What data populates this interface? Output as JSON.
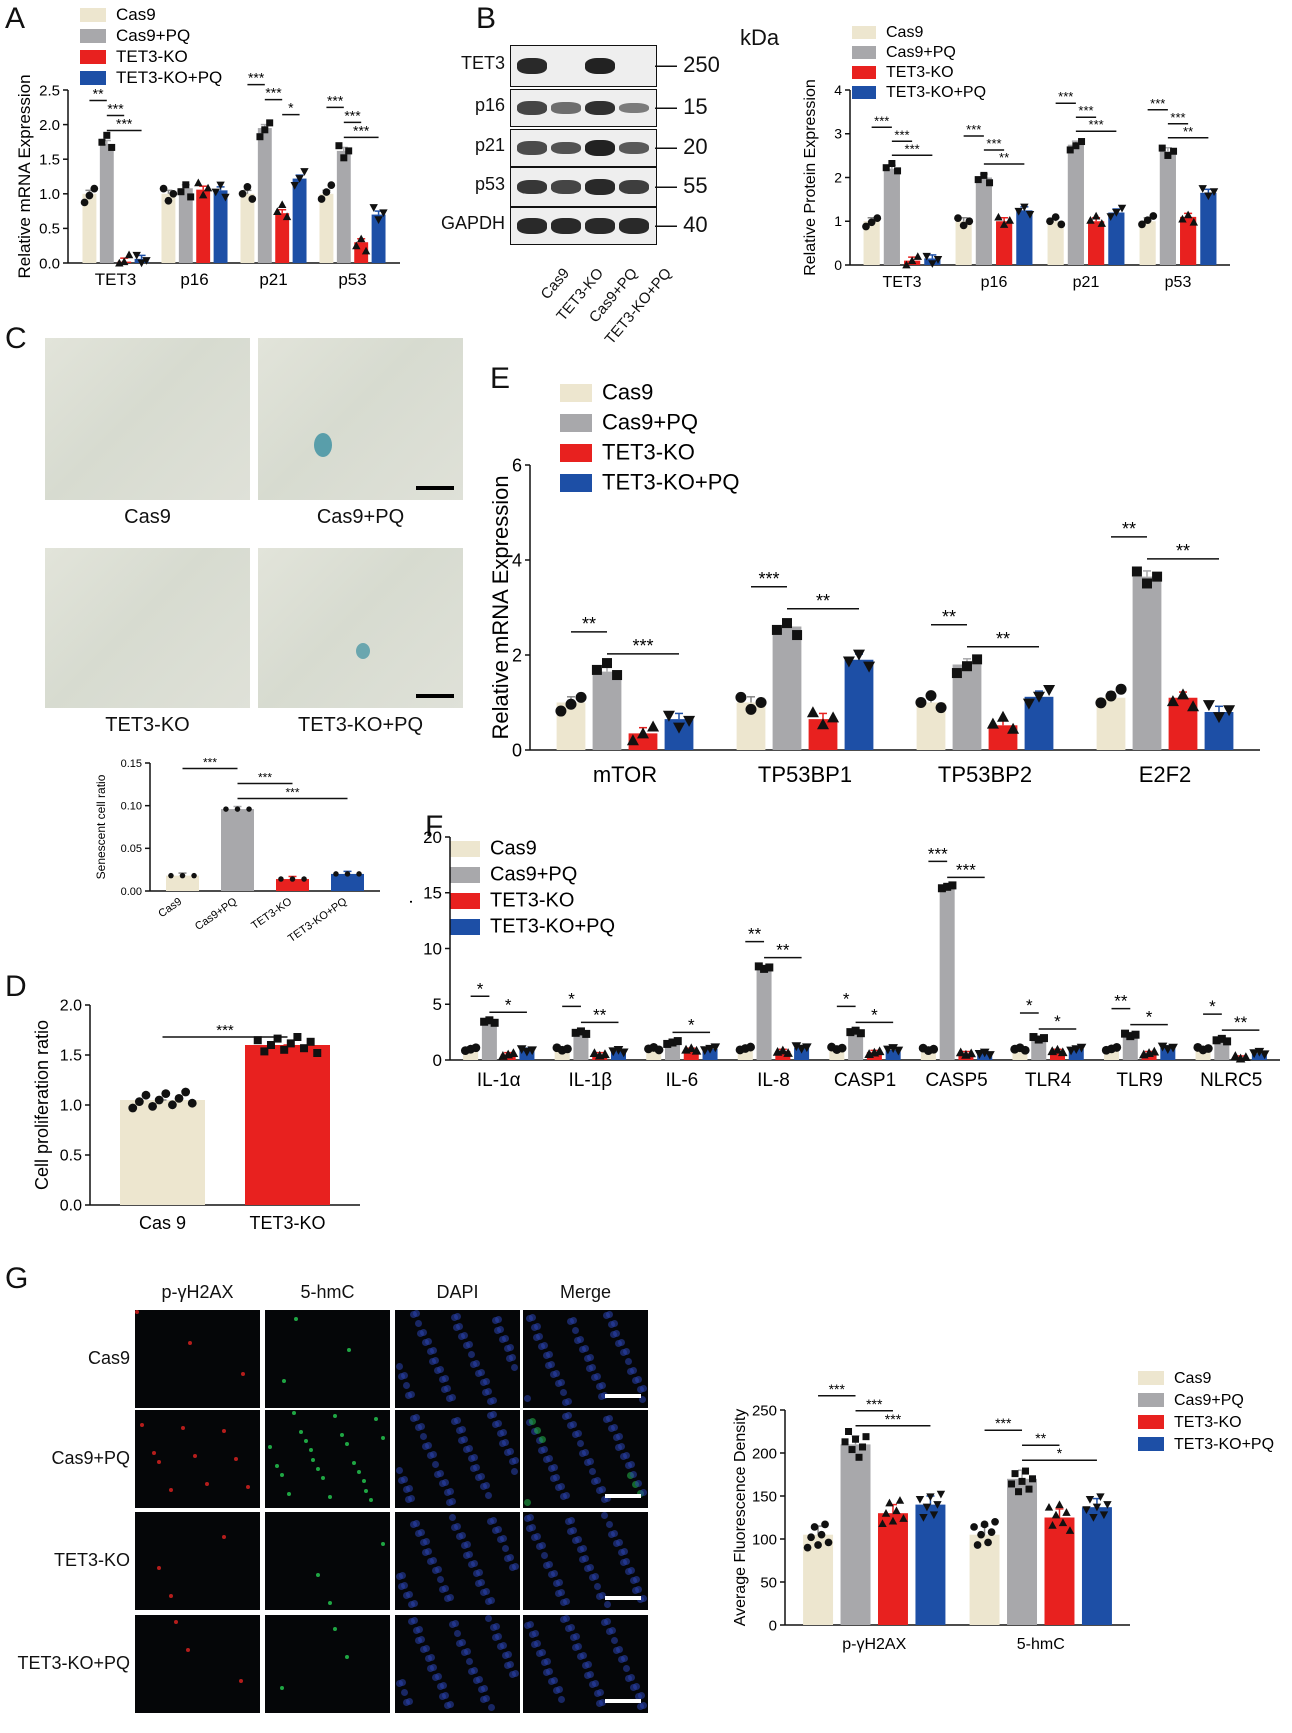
{
  "legend_groups": [
    "Cas9",
    "Cas9+PQ",
    "TET3-KO",
    "TET3-KO+PQ"
  ],
  "colors": {
    "cas9": "#ede6cf",
    "cas9pq": "#a8a8ab",
    "tet3ko": "#e8211f",
    "tet3kopq": "#1d4fa6"
  },
  "panels": {
    "a": "A",
    "b": "B",
    "c": "C",
    "d": "D",
    "e": "E",
    "f": "F",
    "g": "G"
  },
  "panel_b": {
    "kda_label": "kDa",
    "proteins": [
      "TET3",
      "p16",
      "p21",
      "p53",
      "GAPDH"
    ],
    "kda_values": [
      "250",
      "15",
      "20",
      "55",
      "40"
    ],
    "lanes": [
      "Cas9",
      "TET3-KO",
      "Cas9+PQ",
      "TET3-KO+PQ"
    ]
  },
  "panel_c": {
    "images": [
      "Cas9",
      "Cas9+PQ",
      "TET3-KO",
      "TET3-KO+PQ"
    ]
  },
  "panel_g": {
    "columns": [
      "p-γH2AX",
      "5-hmC",
      "DAPI",
      "Merge"
    ],
    "rows": [
      "Cas9",
      "Cas9+PQ",
      "TET3-KO",
      "TET3-KO+PQ"
    ]
  },
  "chart_data": [
    {
      "id": "A",
      "type": "bar",
      "ylabel": "Relative mRNA Expression",
      "categories": [
        "TET3",
        "p16",
        "p21",
        "p53"
      ],
      "ylim": [
        0,
        2.5
      ],
      "yticks": [
        "0.0",
        "0.5",
        "1.0",
        "1.5",
        "2.0",
        "2.5"
      ],
      "series": [
        {
          "name": "Cas9",
          "values": [
            1.0,
            1.0,
            1.0,
            1.0
          ]
        },
        {
          "name": "Cas9+PQ",
          "values": [
            1.72,
            1.08,
            1.95,
            1.62
          ]
        },
        {
          "name": "TET3-KO",
          "values": [
            0.02,
            1.06,
            0.72,
            0.3
          ]
        },
        {
          "name": "TET3-KO+PQ",
          "values": [
            0.06,
            1.05,
            1.22,
            0.7
          ]
        }
      ],
      "significance": [
        {
          "cat": 0,
          "pairs": [
            [
              0,
              1,
              "**"
            ],
            [
              1,
              2,
              "***"
            ],
            [
              1,
              3,
              "***"
            ]
          ]
        },
        {
          "cat": 2,
          "pairs": [
            [
              0,
              1,
              "***"
            ],
            [
              1,
              2,
              "***"
            ],
            [
              2,
              3,
              "*"
            ]
          ]
        },
        {
          "cat": 3,
          "pairs": [
            [
              0,
              1,
              "***"
            ],
            [
              1,
              2,
              "***"
            ],
            [
              1,
              3,
              "***"
            ]
          ]
        }
      ]
    },
    {
      "id": "B",
      "type": "bar",
      "ylabel": "Relative Protein Expression",
      "categories": [
        "TET3",
        "p16",
        "p21",
        "p53"
      ],
      "ylim": [
        0,
        4
      ],
      "yticks": [
        "0",
        "1",
        "2",
        "3",
        "4"
      ],
      "series": [
        {
          "name": "Cas9",
          "values": [
            1.0,
            1.0,
            1.0,
            1.0
          ]
        },
        {
          "name": "Cas9+PQ",
          "values": [
            2.2,
            2.0,
            2.75,
            2.6
          ]
        },
        {
          "name": "TET3-KO",
          "values": [
            0.1,
            1.0,
            1.0,
            1.1
          ]
        },
        {
          "name": "TET3-KO+PQ",
          "values": [
            0.15,
            1.25,
            1.2,
            1.65
          ]
        }
      ],
      "significance": [
        {
          "cat": 0,
          "pairs": [
            [
              0,
              1,
              "***"
            ],
            [
              1,
              2,
              "***"
            ],
            [
              1,
              3,
              "***"
            ]
          ]
        },
        {
          "cat": 1,
          "pairs": [
            [
              0,
              1,
              "***"
            ],
            [
              1,
              2,
              "***"
            ],
            [
              1,
              3,
              "**"
            ]
          ]
        },
        {
          "cat": 2,
          "pairs": [
            [
              0,
              1,
              "***"
            ],
            [
              1,
              2,
              "***"
            ],
            [
              1,
              3,
              "***"
            ]
          ]
        },
        {
          "cat": 3,
          "pairs": [
            [
              0,
              1,
              "***"
            ],
            [
              1,
              2,
              "***"
            ],
            [
              1,
              3,
              "**"
            ]
          ]
        }
      ]
    },
    {
      "id": "C",
      "type": "bar",
      "ylabel": "Senescent cell ratio",
      "categories": [
        "Cas9",
        "Cas9+PQ",
        "TET3-KO",
        "TET3-KO+PQ"
      ],
      "ylim": [
        0,
        0.15
      ],
      "yticks": [
        "0.00",
        "0.05",
        "0.10",
        "0.15"
      ],
      "values": [
        0.018,
        0.096,
        0.014,
        0.02
      ],
      "significance": [
        [
          0,
          1,
          "***"
        ],
        [
          1,
          2,
          "***"
        ],
        [
          1,
          3,
          "***"
        ]
      ]
    },
    {
      "id": "D",
      "type": "bar",
      "ylabel": "Cell proliferation ratio",
      "categories": [
        "Cas 9",
        "TET3-KO"
      ],
      "ylim": [
        0,
        2.0
      ],
      "yticks": [
        "0.0",
        "0.5",
        "1.0",
        "1.5",
        "2.0"
      ],
      "values": [
        1.05,
        1.6
      ],
      "significance": [
        [
          0,
          1,
          "***"
        ]
      ]
    },
    {
      "id": "E",
      "type": "bar",
      "ylabel": "Relative mRNA Expression",
      "categories": [
        "mTOR",
        "TP53BP1",
        "TP53BP2",
        "E2F2"
      ],
      "ylim": [
        0,
        6
      ],
      "yticks": [
        "0",
        "2",
        "4",
        "6"
      ],
      "series": [
        {
          "name": "Cas9",
          "values": [
            1.0,
            1.0,
            1.0,
            1.1
          ]
        },
        {
          "name": "Cas9+PQ",
          "values": [
            1.65,
            2.6,
            1.8,
            3.65
          ]
        },
        {
          "name": "TET3-KO",
          "values": [
            0.35,
            0.65,
            0.52,
            1.1
          ]
        },
        {
          "name": "TET3-KO+PQ",
          "values": [
            0.65,
            1.9,
            1.12,
            0.8
          ]
        }
      ],
      "significance": [
        {
          "cat": 0,
          "pairs": [
            [
              0,
              1,
              "**"
            ],
            [
              1,
              3,
              "***"
            ]
          ]
        },
        {
          "cat": 1,
          "pairs": [
            [
              0,
              1,
              "***"
            ],
            [
              1,
              3,
              "**"
            ]
          ]
        },
        {
          "cat": 2,
          "pairs": [
            [
              0,
              1,
              "**"
            ],
            [
              1,
              3,
              "**"
            ]
          ]
        },
        {
          "cat": 3,
          "pairs": [
            [
              0,
              1,
              "**"
            ],
            [
              1,
              3,
              "**"
            ]
          ]
        }
      ]
    },
    {
      "id": "F",
      "type": "bar",
      "ylabel": "Relative mRNA Expression",
      "categories": [
        "IL-1α",
        "IL-1β",
        "IL-6",
        "IL-8",
        "CASP1",
        "CASP5",
        "TLR4",
        "TLR9",
        "NLRC5"
      ],
      "ylim": [
        0,
        20
      ],
      "yticks": [
        "0",
        "5",
        "10",
        "15",
        "20"
      ],
      "series": [
        {
          "name": "Cas9",
          "values": [
            1.0,
            1.0,
            1.0,
            1.0,
            1.0,
            1.0,
            1.0,
            1.0,
            1.0
          ]
        },
        {
          "name": "Cas9+PQ",
          "values": [
            3.4,
            2.5,
            1.6,
            8.3,
            2.5,
            15.5,
            1.9,
            2.3,
            1.8
          ]
        },
        {
          "name": "TET3-KO",
          "values": [
            0.5,
            0.5,
            0.9,
            0.8,
            0.7,
            0.6,
            0.8,
            0.6,
            0.2
          ]
        },
        {
          "name": "TET3-KO+PQ",
          "values": [
            0.9,
            0.8,
            1.0,
            1.1,
            0.9,
            0.6,
            1.0,
            1.1,
            0.6
          ]
        }
      ],
      "significance": [
        {
          "cat": 0,
          "pairs": [
            [
              0,
              1,
              "*"
            ],
            [
              1,
              3,
              "*"
            ]
          ]
        },
        {
          "cat": 1,
          "pairs": [
            [
              0,
              1,
              "*"
            ],
            [
              1,
              3,
              "**"
            ]
          ]
        },
        {
          "cat": 2,
          "pairs": [
            [
              1,
              3,
              "*"
            ]
          ]
        },
        {
          "cat": 3,
          "pairs": [
            [
              0,
              1,
              "**"
            ],
            [
              1,
              3,
              "**"
            ]
          ]
        },
        {
          "cat": 4,
          "pairs": [
            [
              0,
              1,
              "*"
            ],
            [
              1,
              3,
              "*"
            ]
          ]
        },
        {
          "cat": 5,
          "pairs": [
            [
              0,
              1,
              "***"
            ],
            [
              1,
              3,
              "***"
            ]
          ]
        },
        {
          "cat": 6,
          "pairs": [
            [
              0,
              1,
              "*"
            ],
            [
              1,
              3,
              "*"
            ]
          ]
        },
        {
          "cat": 7,
          "pairs": [
            [
              0,
              1,
              "**"
            ],
            [
              1,
              3,
              "*"
            ]
          ]
        },
        {
          "cat": 8,
          "pairs": [
            [
              0,
              1,
              "*"
            ],
            [
              1,
              3,
              "**"
            ]
          ]
        }
      ]
    },
    {
      "id": "G",
      "type": "bar",
      "ylabel": "Average Fluorescence Density",
      "categories": [
        "p-γH2AX",
        "5-hmC"
      ],
      "ylim": [
        0,
        250
      ],
      "yticks": [
        "0",
        "50",
        "100",
        "150",
        "200",
        "250"
      ],
      "series": [
        {
          "name": "Cas9",
          "values": [
            105,
            105
          ]
        },
        {
          "name": "Cas9+PQ",
          "values": [
            210,
            170
          ]
        },
        {
          "name": "TET3-KO",
          "values": [
            130,
            125
          ]
        },
        {
          "name": "TET3-KO+PQ",
          "values": [
            140,
            137
          ]
        }
      ],
      "significance": [
        {
          "cat": 0,
          "pairs": [
            [
              0,
              1,
              "***"
            ],
            [
              1,
              2,
              "***"
            ],
            [
              1,
              3,
              "***"
            ]
          ]
        },
        {
          "cat": 1,
          "pairs": [
            [
              0,
              1,
              "***"
            ],
            [
              1,
              2,
              "**"
            ],
            [
              1,
              3,
              "*"
            ]
          ]
        }
      ]
    }
  ]
}
